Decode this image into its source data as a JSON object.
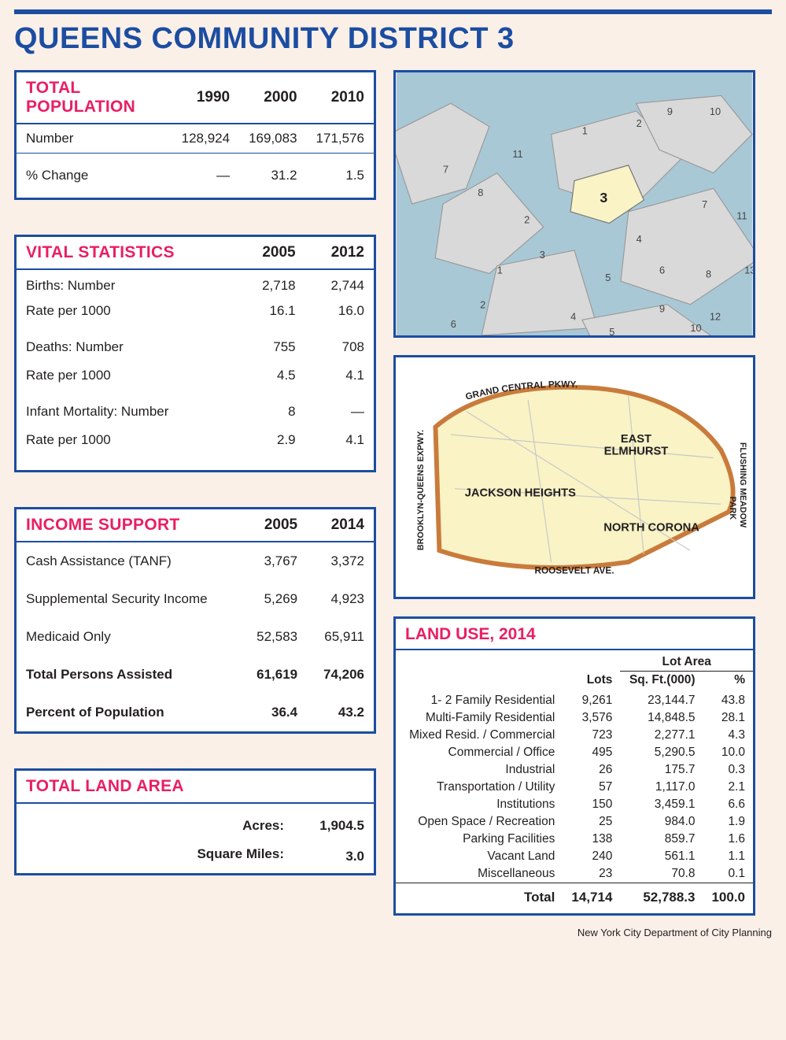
{
  "colors": {
    "accent_blue": "#1c4da1",
    "accent_pink": "#e91e63",
    "page_bg": "#faf0e8",
    "box_bg": "#ffffff",
    "map_bg": "#e8e8e8",
    "highlight_district": "#f9f3c6",
    "district_border": "#c97b3c",
    "water": "#a9c8d6",
    "land_gray": "#d9d9d9",
    "park_green": "#cde4b8"
  },
  "title": "QUEENS COMMUNITY DISTRICT 3",
  "footer": "New York City Department of City Planning",
  "population": {
    "header": "TOTAL POPULATION",
    "years": [
      "1990",
      "2000",
      "2010"
    ],
    "rows": [
      {
        "label": "Number",
        "vals": [
          "128,924",
          "169,083",
          "171,576"
        ]
      },
      {
        "label": "% Change",
        "vals": [
          "—",
          "31.2",
          "1.5"
        ]
      }
    ]
  },
  "vital": {
    "header": "VITAL STATISTICS",
    "years": [
      "2005",
      "2012"
    ],
    "groups": [
      [
        {
          "label": "Births: Number",
          "vals": [
            "2,718",
            "2,744"
          ]
        },
        {
          "label": "Rate per 1000",
          "vals": [
            "16.1",
            "16.0"
          ]
        }
      ],
      [
        {
          "label": "Deaths: Number",
          "vals": [
            "755",
            "708"
          ]
        },
        {
          "label": "Rate per 1000",
          "vals": [
            "4.5",
            "4.1"
          ]
        }
      ],
      [
        {
          "label": "Infant Mortality: Number",
          "vals": [
            "8",
            "—"
          ]
        },
        {
          "label": "Rate per 1000",
          "vals": [
            "2.9",
            "4.1"
          ]
        }
      ]
    ]
  },
  "income": {
    "header": "INCOME SUPPORT",
    "years": [
      "2005",
      "2014"
    ],
    "rows": [
      {
        "label": "Cash Assistance (TANF)",
        "vals": [
          "3,767",
          "3,372"
        ],
        "bold": false
      },
      {
        "label": "Supplemental Security Income",
        "vals": [
          "5,269",
          "4,923"
        ],
        "bold": false
      },
      {
        "label": "Medicaid Only",
        "vals": [
          "52,583",
          "65,911"
        ],
        "bold": false
      },
      {
        "label": "Total Persons Assisted",
        "vals": [
          "61,619",
          "74,206"
        ],
        "bold": true
      },
      {
        "label": "Percent of Population",
        "vals": [
          "36.4",
          "43.2"
        ],
        "bold": true
      }
    ]
  },
  "land_area": {
    "header": "TOTAL LAND AREA",
    "rows": [
      {
        "label": "Acres:",
        "val": "1,904.5"
      },
      {
        "label": "Square Miles:",
        "val": "3.0"
      }
    ]
  },
  "neigh_map": {
    "roads": {
      "top": "GRAND CENTRAL PKWY.",
      "left": "BROOKLYN-QUEENS EXPWY.",
      "right_top": "FLUSHING MEADOW",
      "right_bottom": "PARK",
      "bottom": "ROOSEVELT AVE."
    },
    "labels": {
      "a": "EAST ELMHURST",
      "b": "JACKSON HEIGHTS",
      "c": "NORTH CORONA"
    }
  },
  "overview_map": {
    "highlighted_district": "3",
    "visible_district_labels": [
      "1",
      "2",
      "3",
      "4",
      "5",
      "6",
      "7",
      "8",
      "9",
      "10",
      "11",
      "12",
      "13"
    ]
  },
  "land_use": {
    "header": "LAND USE, 2014",
    "col_group": "Lot Area",
    "cols": [
      "Lots",
      "Sq. Ft.(000)",
      "%"
    ],
    "rows": [
      {
        "cat": "1- 2 Family Residential",
        "lots": "9,261",
        "sqft": "23,144.7",
        "pct": "43.8"
      },
      {
        "cat": "Multi-Family Residential",
        "lots": "3,576",
        "sqft": "14,848.5",
        "pct": "28.1"
      },
      {
        "cat": "Mixed Resid. / Commercial",
        "lots": "723",
        "sqft": "2,277.1",
        "pct": "4.3"
      },
      {
        "cat": "Commercial / Office",
        "lots": "495",
        "sqft": "5,290.5",
        "pct": "10.0"
      },
      {
        "cat": "Industrial",
        "lots": "26",
        "sqft": "175.7",
        "pct": "0.3"
      },
      {
        "cat": "Transportation / Utility",
        "lots": "57",
        "sqft": "1,117.0",
        "pct": "2.1"
      },
      {
        "cat": "Institutions",
        "lots": "150",
        "sqft": "3,459.1",
        "pct": "6.6"
      },
      {
        "cat": "Open Space / Recreation",
        "lots": "25",
        "sqft": "984.0",
        "pct": "1.9"
      },
      {
        "cat": "Parking Facilities",
        "lots": "138",
        "sqft": "859.7",
        "pct": "1.6"
      },
      {
        "cat": "Vacant Land",
        "lots": "240",
        "sqft": "561.1",
        "pct": "1.1"
      },
      {
        "cat": "Miscellaneous",
        "lots": "23",
        "sqft": "70.8",
        "pct": "0.1"
      }
    ],
    "total": {
      "cat": "Total",
      "lots": "14,714",
      "sqft": "52,788.3",
      "pct": "100.0"
    }
  }
}
